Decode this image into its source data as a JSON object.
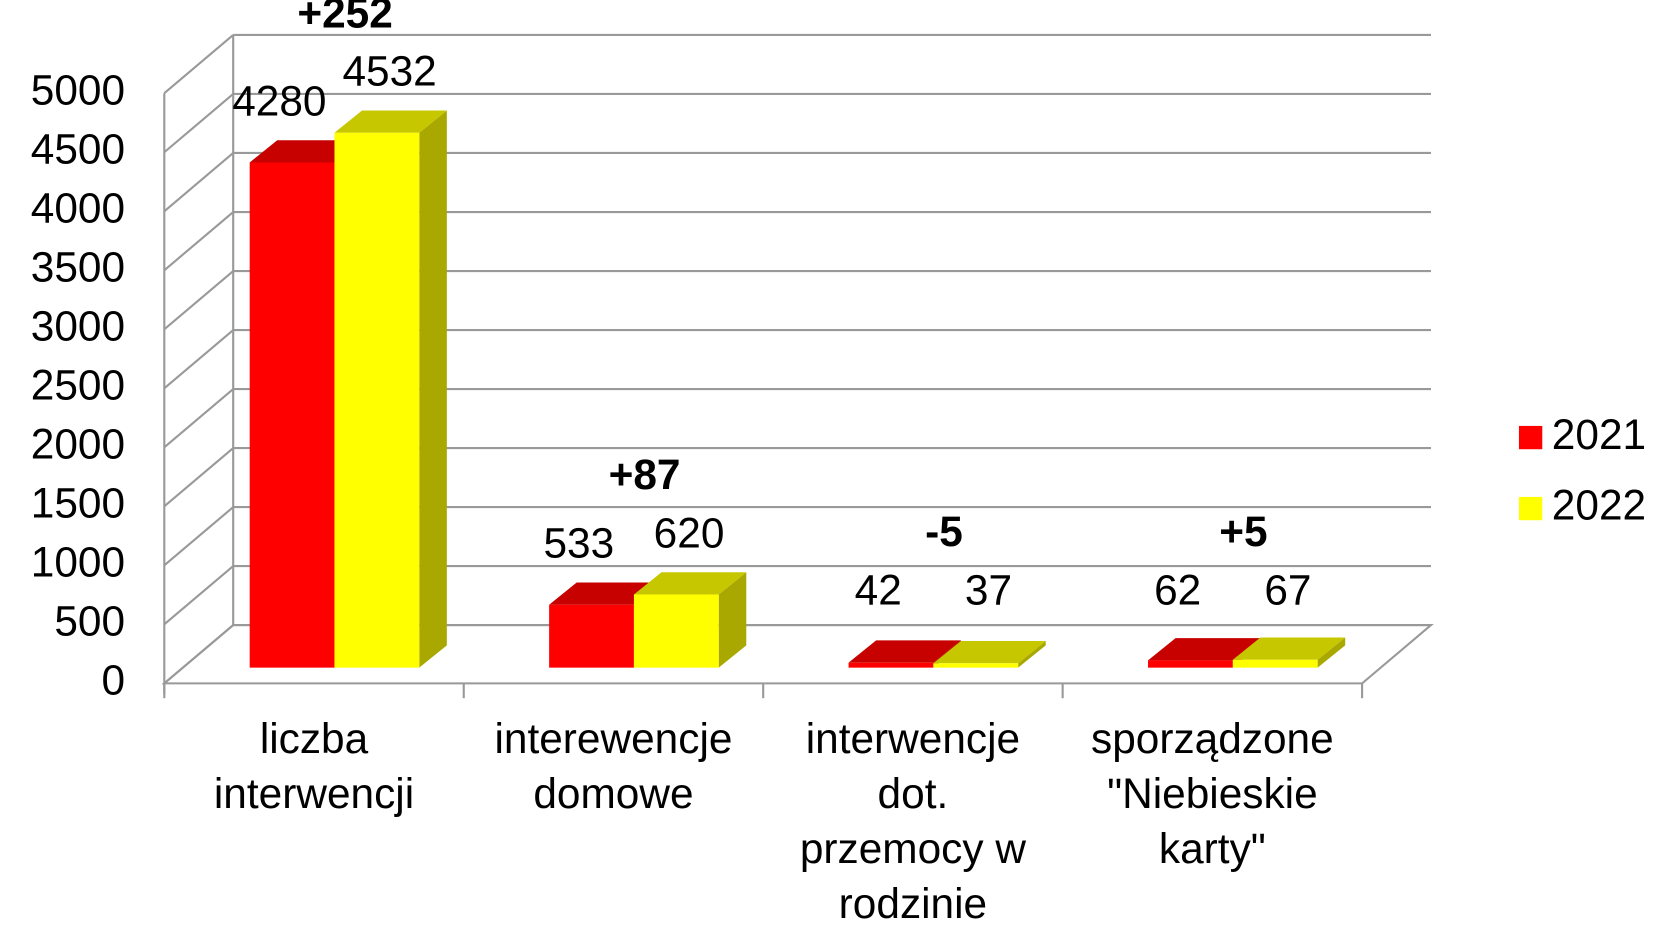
{
  "chart_data": {
    "type": "bar3d",
    "categories": [
      [
        "liczba",
        "interwencji"
      ],
      [
        "interewencje",
        "domowe"
      ],
      [
        "interwencje",
        "dot.",
        "przemocy w",
        "rodzinie"
      ],
      [
        "sporządzone",
        "\"Niebieskie",
        "karty\""
      ]
    ],
    "series": [
      {
        "name": "2021",
        "color": "#ff0000",
        "values": [
          4280,
          533,
          42,
          62
        ]
      },
      {
        "name": "2022",
        "color": "#ffff00",
        "values": [
          4532,
          620,
          37,
          67
        ]
      }
    ],
    "annotations": [
      "+252",
      "+87",
      "-5",
      "+5"
    ],
    "ylim": [
      0,
      5000
    ],
    "yticks": [
      0,
      500,
      1000,
      1500,
      2000,
      2500,
      3000,
      3500,
      4000,
      4500,
      5000
    ],
    "grid": true,
    "legend": "right"
  }
}
